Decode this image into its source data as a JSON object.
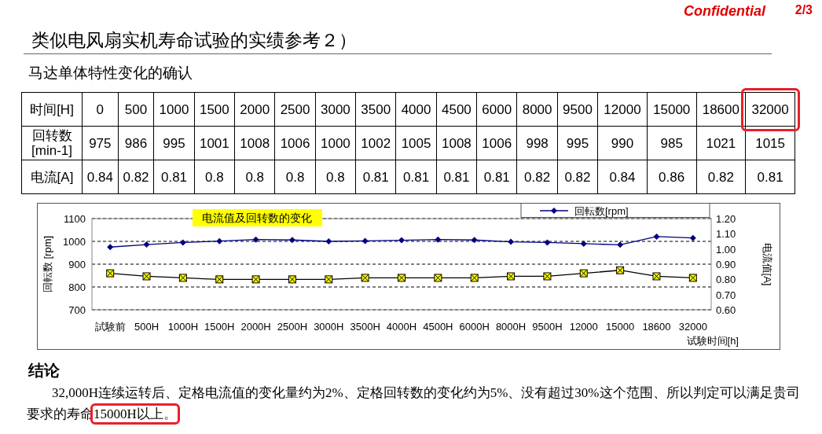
{
  "chart_data": {
    "type": "line",
    "title": "类似电风扇实机寿命试验的实绩参考２）",
    "subtitle": "马达单体特性变化的确认",
    "xlabel": "试験时间[h]",
    "ylabel": "回転数 [rpm]",
    "y2label": "电流值[A]",
    "categories": [
      "試験前",
      "500H",
      "1000H",
      "1500H",
      "2000H",
      "2500H",
      "3000H",
      "3500H",
      "4000H",
      "4500H",
      "6000H",
      "8000H",
      "9500H",
      "12000",
      "15000",
      "18600",
      "32000"
    ],
    "series": [
      {
        "name": "回転数[rpm]",
        "color": "#000080",
        "marker": "diamond",
        "values": [
          975,
          986,
          995,
          1001,
          1008,
          1006,
          1000,
          1002,
          1005,
          1008,
          1006,
          998,
          995,
          990,
          985,
          1021,
          1015
        ]
      },
      {
        "color": "#000000",
        "marker": "square",
        "axis": "y2",
        "values": [
          0.84,
          0.82,
          0.81,
          0.8,
          0.8,
          0.8,
          0.8,
          0.81,
          0.81,
          0.81,
          0.81,
          0.82,
          0.82,
          0.84,
          0.86,
          0.82,
          0.81
        ]
      }
    ],
    "ylim": [
      700,
      1100
    ],
    "yticks": [
      700,
      800,
      900,
      1000,
      1100
    ],
    "y2lim": [
      0.6,
      1.2
    ],
    "y2ticks": [
      {
        "value": 0.6,
        "label": "0.60"
      },
      {
        "value": 0.7,
        "label": "0.70"
      },
      {
        "value": 0.8,
        "label": "0.80"
      },
      {
        "value": 0.9,
        "label": "0.90"
      },
      {
        "value": 1.0,
        "label": "1.00"
      },
      {
        "value": 1.1,
        "label": "1.10"
      },
      {
        "value": 1.2,
        "label": "1.20"
      }
    ],
    "grid": "y",
    "legend": "top right",
    "annotations": [
      "Confidential",
      "2/3",
      "电流值及回转数的变化",
      "时间[H]",
      "回转数[min-1]",
      "电流[A]",
      "0",
      "500",
      "1000",
      "1500",
      "2000",
      "2500",
      "3000",
      "3500",
      "4000",
      "4500",
      "6000",
      "8000",
      "9500",
      "12000",
      "15000",
      "18600",
      "32000",
      "975",
      "986",
      "995",
      "1001",
      "1008",
      "1006",
      "1000",
      "1002",
      "1005",
      "1008",
      "1006",
      "998",
      "995",
      "990",
      "985",
      "1021",
      "1015",
      "0.84",
      "0.82",
      "0.81",
      "0.8",
      "0.8",
      "0.8",
      "0.8",
      "0.81",
      "0.81",
      "0.81",
      "0.81",
      "0.82",
      "0.82",
      "0.84",
      "0.86",
      "0.82",
      "0.81",
      "结论",
      "32,000H连续运转后、定格电流值的变化量约为2%、定格回转数的变化约为5%、没有超过30%这个范围、所以判定可以满足贵司要求的寿命",
      "15000H以上。"
    ]
  }
}
